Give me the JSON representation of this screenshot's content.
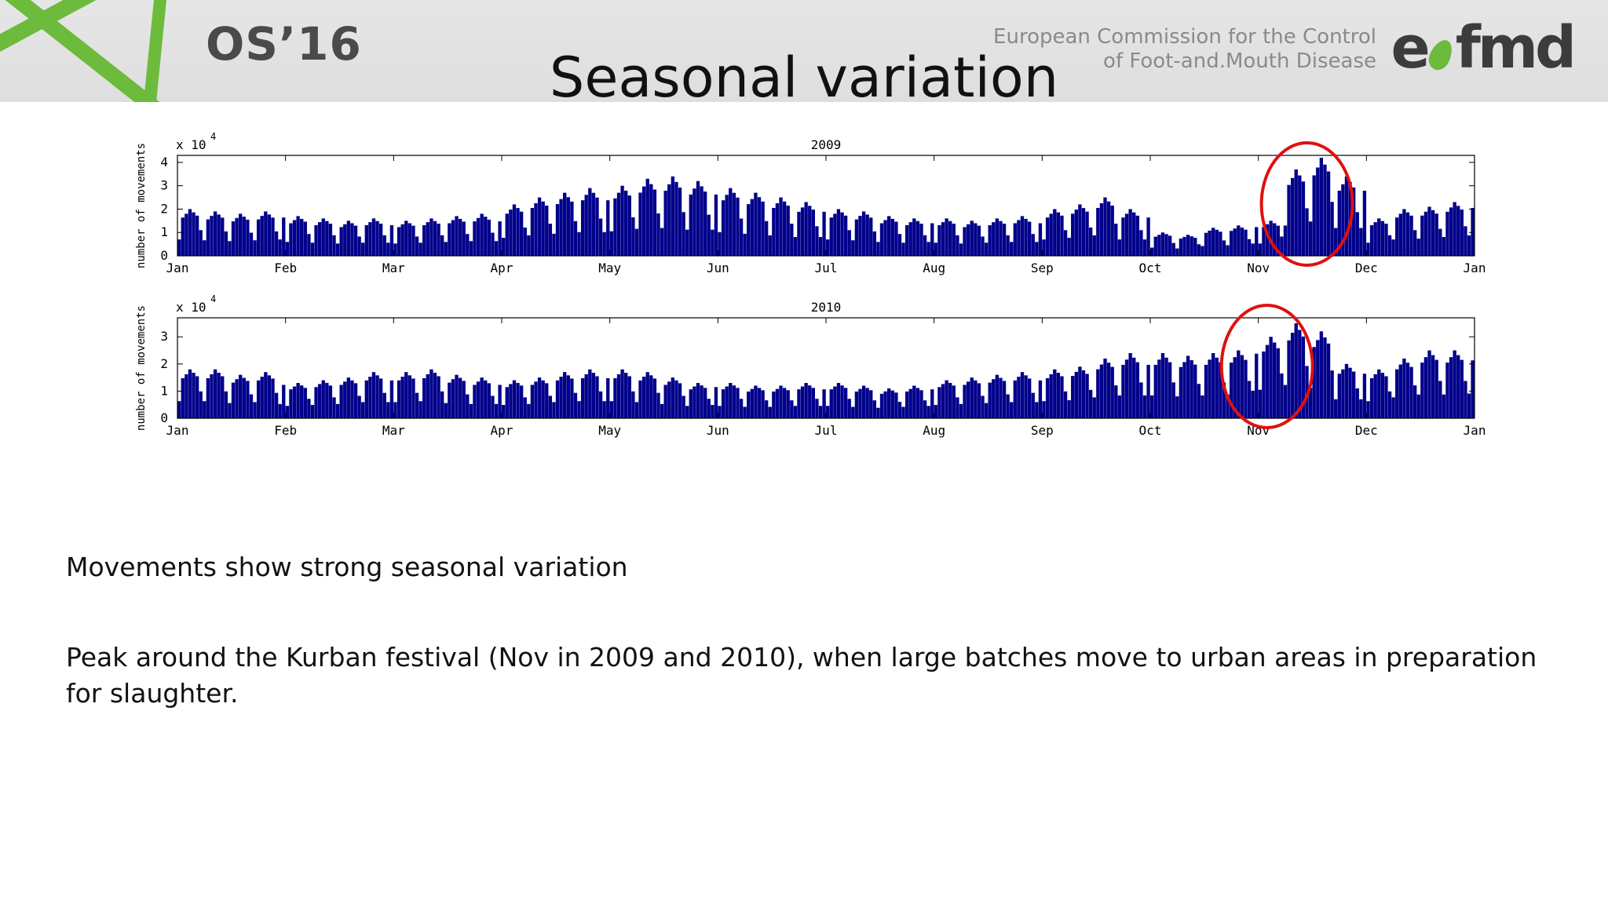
{
  "header": {
    "conference": "OS’16",
    "organization_lines": [
      "European Commission for the Control",
      "of Foot-and.Mouth Disease"
    ],
    "logo_text_left": "e",
    "logo_text_right": "fmd",
    "brand_green": "#6dbb3c"
  },
  "slide": {
    "title": "Seasonal variation",
    "paragraph_1": "Movements show strong seasonal variation",
    "paragraph_2": "Peak around the Kurban festival (Nov in 2009 and 2010), when large batches move to urban areas in preparation for slaughter."
  },
  "chart_data": [
    {
      "type": "bar",
      "title": "2009",
      "ylabel": "number of movements",
      "exponent_label": "x 10",
      "exponent": "4",
      "x_ticks": [
        "Jan",
        "Feb",
        "Mar",
        "Apr",
        "May",
        "Jun",
        "Jul",
        "Aug",
        "Sep",
        "Oct",
        "Nov",
        "Dec",
        "Jan"
      ],
      "y_ticks": [
        0,
        1,
        2,
        3,
        4
      ],
      "ylim": [
        0,
        4.3
      ],
      "bar_color": "#00008b",
      "highlight": {
        "month": "Nov",
        "color": "#e01010"
      },
      "weekly_peaks": [
        [
          2.0,
          1.9,
          1.8,
          1.9,
          2.0
        ],
        [
          1.7,
          1.6,
          1.5,
          1.6
        ],
        [
          1.5,
          1.6,
          1.7,
          1.8
        ],
        [
          2.2,
          2.5,
          2.7,
          2.9
        ],
        [
          3.0,
          3.3,
          3.4,
          3.2
        ],
        [
          2.9,
          2.7,
          2.5,
          2.3
        ],
        [
          2.0,
          1.9,
          1.7,
          1.6,
          1.7
        ],
        [
          1.6,
          1.5,
          1.6,
          1.7
        ],
        [
          2.0,
          2.2,
          2.5,
          2.0
        ],
        [
          1.0,
          0.9,
          1.2,
          1.3,
          1.5
        ],
        [
          1.5,
          3.7,
          4.2,
          3.4
        ],
        [
          1.6,
          2.0,
          2.1,
          2.3,
          2.5
        ]
      ]
    },
    {
      "type": "bar",
      "title": "2010",
      "ylabel": "number of movements",
      "exponent_label": "x 10",
      "exponent": "4",
      "x_ticks": [
        "Jan",
        "Feb",
        "Mar",
        "Apr",
        "May",
        "Jun",
        "Jul",
        "Aug",
        "Sep",
        "Oct",
        "Nov",
        "Dec",
        "Jan"
      ],
      "y_ticks": [
        0,
        1,
        2,
        3
      ],
      "ylim": [
        0,
        3.7
      ],
      "bar_color": "#00008b",
      "highlight": {
        "month": "Nov",
        "color": "#e01010"
      },
      "weekly_peaks": [
        [
          1.8,
          1.8,
          1.6,
          1.7,
          1.5
        ],
        [
          1.3,
          1.4,
          1.5,
          1.7
        ],
        [
          1.7,
          1.8,
          1.6,
          1.5
        ],
        [
          1.4,
          1.5,
          1.7,
          1.8
        ],
        [
          1.8,
          1.7,
          1.5,
          1.3,
          1.4
        ],
        [
          1.3,
          1.2,
          1.2,
          1.3
        ],
        [
          1.3,
          1.2,
          1.1,
          1.2,
          1.3
        ],
        [
          1.4,
          1.5,
          1.6,
          1.7
        ],
        [
          1.8,
          1.9,
          2.2,
          2.4
        ],
        [
          2.4,
          2.3,
          2.4,
          2.5,
          2.9
        ],
        [
          3.0,
          3.5,
          3.2,
          2.0
        ],
        [
          1.8,
          2.2,
          2.5,
          2.5,
          2.6
        ]
      ]
    }
  ]
}
